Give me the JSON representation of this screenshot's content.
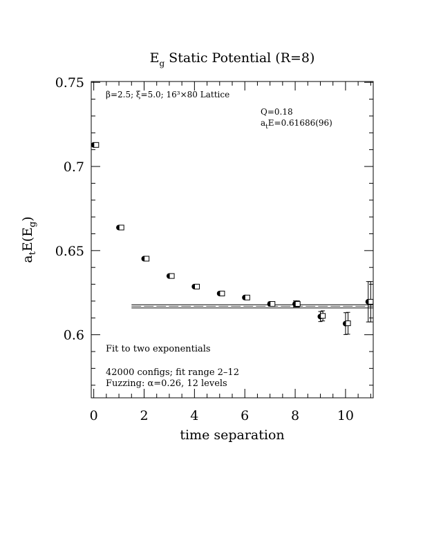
{
  "chart_data": {
    "type": "scatter",
    "title_main": "E",
    "title_sub": "g",
    "title_rest": " Static Potential (R=8)",
    "xlabel": "time separation",
    "ylabel_parts": [
      {
        "t": "a",
        "sub": false
      },
      {
        "t": "t",
        "sub": true
      },
      {
        "t": "E(E",
        "sub": false
      },
      {
        "t": "g",
        "sub": true
      },
      {
        "t": ")",
        "sub": false
      }
    ],
    "xlim": [
      -0.1,
      11.1
    ],
    "ylim": [
      0.5625,
      0.7505
    ],
    "x_ticks": [
      0,
      2,
      4,
      6,
      8,
      10
    ],
    "x_tick_labels": [
      "0",
      "2",
      "4",
      "6",
      "8",
      "10"
    ],
    "y_ticks": [
      0.6,
      0.65,
      0.7,
      0.75
    ],
    "y_tick_labels": [
      "0.6",
      "0.65",
      "0.7",
      "0.75"
    ],
    "lattice_line": "β=2.5; ξ=5.0; 16³×80 Lattice",
    "fit_q": "Q=0.18",
    "fit_energy_parts": [
      {
        "t": "a",
        "sub": false
      },
      {
        "t": "t",
        "sub": true
      },
      {
        "t": "E=0.61686(96)",
        "sub": false
      }
    ],
    "notes": [
      "Fit to two exponentials",
      "42000 configs; fit range 2–12",
      "Fuzzing: α=0.26, 12 levels"
    ],
    "fit": {
      "value": 0.61686,
      "error": 0.00096,
      "x_range": [
        1.5,
        11.1
      ]
    },
    "series": [
      {
        "marker": "filled-circle",
        "points": [
          {
            "x": 0,
            "y": 0.7128,
            "err": 0.0004
          },
          {
            "x": 1,
            "y": 0.6637,
            "err": 0.0004
          },
          {
            "x": 2,
            "y": 0.6452,
            "err": 0.0004
          },
          {
            "x": 3,
            "y": 0.6349,
            "err": 0.0005
          },
          {
            "x": 4,
            "y": 0.6286,
            "err": 0.0006
          },
          {
            "x": 5,
            "y": 0.6245,
            "err": 0.0007
          },
          {
            "x": 6,
            "y": 0.6221,
            "err": 0.0009
          },
          {
            "x": 7,
            "y": 0.6183,
            "err": 0.0012
          },
          {
            "x": 8,
            "y": 0.6183,
            "err": 0.0018
          },
          {
            "x": 9,
            "y": 0.6108,
            "err": 0.003
          },
          {
            "x": 10,
            "y": 0.6066,
            "err": 0.0065
          },
          {
            "x": 10.9,
            "y": 0.6196,
            "err": 0.012
          }
        ]
      },
      {
        "marker": "open-square",
        "points": [
          {
            "x": 0.1,
            "y": 0.7128,
            "err": 0.0004
          },
          {
            "x": 1.1,
            "y": 0.6637,
            "err": 0.0004
          },
          {
            "x": 2.1,
            "y": 0.6452,
            "err": 0.0004
          },
          {
            "x": 3.1,
            "y": 0.6349,
            "err": 0.0005
          },
          {
            "x": 4.1,
            "y": 0.6286,
            "err": 0.0006
          },
          {
            "x": 5.1,
            "y": 0.6245,
            "err": 0.0007
          },
          {
            "x": 6.1,
            "y": 0.6221,
            "err": 0.0009
          },
          {
            "x": 7.1,
            "y": 0.6183,
            "err": 0.0012
          },
          {
            "x": 8.1,
            "y": 0.6183,
            "err": 0.0018
          },
          {
            "x": 9.1,
            "y": 0.6112,
            "err": 0.003
          },
          {
            "x": 10.1,
            "y": 0.6068,
            "err": 0.0065
          },
          {
            "x": 11.0,
            "y": 0.6196,
            "err": 0.012
          }
        ]
      }
    ]
  }
}
